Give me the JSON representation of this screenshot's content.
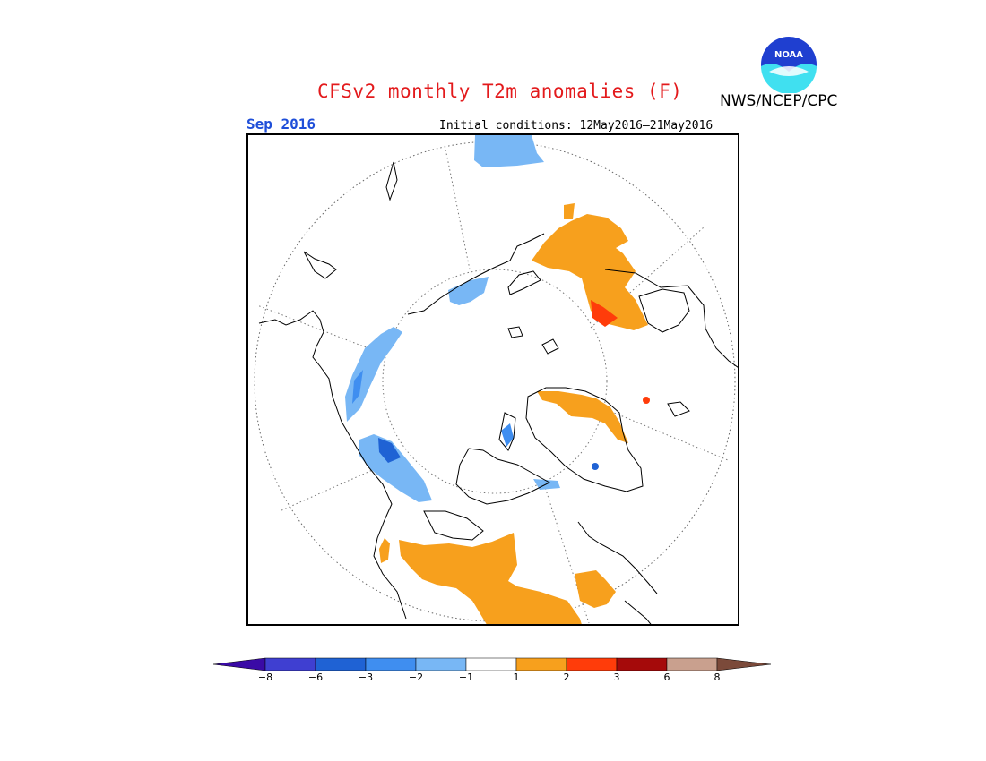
{
  "header": {
    "title": "CFSv2 monthly T2m anomalies (F)",
    "organization": "NWS/NCEP/CPC",
    "logo_text": "NOAA",
    "target_month": "Sep 2016",
    "initial_conditions": "Initial conditions: 12May2016–21May2016"
  },
  "colorbar": {
    "labels": [
      "−8",
      "−6",
      "−3",
      "−2",
      "−1",
      "1",
      "2",
      "3",
      "6",
      "8"
    ],
    "colors": [
      "#3a0aa6",
      "#3f3fd1",
      "#1f62d4",
      "#3f8ef0",
      "#78b7f5",
      "#ffffff",
      "#f7a01d",
      "#ff3c0a",
      "#a50a0a",
      "#c9a08e",
      "#7b4a3a"
    ]
  },
  "map": {
    "projection": "north polar stereographic",
    "anomaly_regions": [
      {
        "sign": "positive",
        "category": "1 to 2",
        "location": "Eurasia / Scandinavia-western Russia"
      },
      {
        "sign": "positive",
        "category": "1 to 2",
        "location": "Greenland coasts"
      },
      {
        "sign": "positive",
        "category": "1 to 2",
        "location": "western and central Asia"
      },
      {
        "sign": "positive",
        "category": "2 to 3",
        "location": "Siberia"
      },
      {
        "sign": "negative",
        "category": "-1 to -3",
        "location": "Alaska / Yukon"
      },
      {
        "sign": "negative",
        "category": "-1 to -3",
        "location": "East Siberia coast"
      },
      {
        "sign": "negative",
        "category": "-1 to -2",
        "location": "Pacific (top edge)"
      },
      {
        "sign": "negative",
        "category": "-1 to -3",
        "location": "eastern Siberia coast"
      }
    ]
  }
}
